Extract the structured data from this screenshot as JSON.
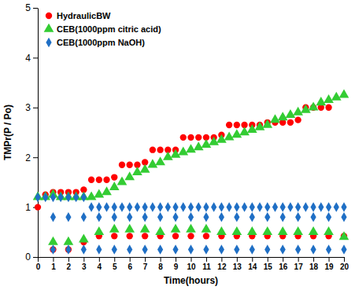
{
  "chart_data": {
    "type": "scatter",
    "x_label": "Time(hours)",
    "y_label": "TMPr(P / Po)",
    "xlim": [
      0,
      20
    ],
    "xticks": [
      0,
      1,
      2,
      3,
      4,
      5,
      6,
      7,
      8,
      9,
      10,
      11,
      12,
      13,
      14,
      15,
      16,
      17,
      18,
      19,
      20
    ],
    "ylim": [
      0,
      5
    ],
    "yticks": [
      0,
      1,
      2,
      3,
      4,
      5
    ],
    "legend": "top-left",
    "grid": false,
    "series": [
      {
        "name": "HydraulicBW",
        "color": "#ff0000",
        "marker": "circle",
        "x": [
          0,
          0.5,
          1,
          1.5,
          2,
          2.5,
          3,
          3.5,
          4,
          4.5,
          5,
          5.5,
          6,
          6.5,
          7,
          7.5,
          8,
          8.5,
          9,
          9.5,
          10,
          10.5,
          11,
          11.5,
          12,
          12.5,
          13,
          13.5,
          14,
          14.5,
          15,
          15.5,
          16,
          16.5,
          17,
          17.5,
          18,
          18.5,
          19,
          1,
          2,
          3,
          4,
          5,
          6,
          7,
          8,
          9,
          10,
          11,
          12,
          13,
          14,
          15,
          16,
          17,
          18,
          19,
          20
        ],
        "values": [
          1.0,
          1.25,
          1.3,
          1.3,
          1.3,
          1.3,
          1.35,
          1.55,
          1.55,
          1.55,
          1.6,
          1.85,
          1.85,
          1.85,
          1.9,
          2.15,
          2.15,
          2.15,
          2.15,
          2.4,
          2.4,
          2.4,
          2.4,
          2.4,
          2.45,
          2.65,
          2.65,
          2.65,
          2.65,
          2.65,
          2.7,
          2.7,
          2.7,
          2.7,
          2.75,
          3.0,
          3.0,
          3.0,
          3.0,
          0.15,
          0.15,
          0.3,
          0.42,
          0.42,
          0.42,
          0.42,
          0.42,
          0.42,
          0.42,
          0.42,
          0.42,
          0.42,
          0.42,
          0.42,
          0.42,
          0.42,
          0.42,
          0.42,
          0.42
        ]
      },
      {
        "name": "CEB(1000ppm citric acid)",
        "color": "#33cc33",
        "marker": "triangle",
        "x": [
          0,
          0.5,
          1,
          1.5,
          2,
          2.5,
          3,
          3.5,
          4,
          4.5,
          5,
          5.5,
          6,
          6.5,
          7,
          7.5,
          8,
          8.5,
          9,
          9.5,
          10,
          10.5,
          11,
          11.5,
          12,
          12.5,
          13,
          13.5,
          14,
          14.5,
          15,
          15.5,
          16,
          16.5,
          17,
          17.5,
          18,
          18.5,
          19,
          19.5,
          20,
          1,
          2,
          3,
          4,
          5,
          6,
          7,
          8,
          9,
          10,
          11,
          12,
          13,
          14,
          15,
          16,
          17,
          18,
          19,
          20
        ],
        "values": [
          1.2,
          1.2,
          1.25,
          1.2,
          1.2,
          1.2,
          1.2,
          1.2,
          1.25,
          1.3,
          1.4,
          1.5,
          1.6,
          1.7,
          1.75,
          1.85,
          1.9,
          2.0,
          2.05,
          2.1,
          2.15,
          2.2,
          2.25,
          2.3,
          2.35,
          2.4,
          2.45,
          2.5,
          2.55,
          2.6,
          2.65,
          2.75,
          2.8,
          2.85,
          2.9,
          2.95,
          3.0,
          3.1,
          3.15,
          3.2,
          3.25,
          0.3,
          0.3,
          0.35,
          0.5,
          0.55,
          0.55,
          0.55,
          0.5,
          0.55,
          0.55,
          0.55,
          0.5,
          0.5,
          0.5,
          0.5,
          0.5,
          0.5,
          0.5,
          0.5,
          0.4
        ]
      },
      {
        "name": "CEB(1000ppm NaOH)",
        "color": "#1f6fc5",
        "marker": "diamond",
        "x": [
          0,
          0.5,
          1,
          1.5,
          2,
          2.5,
          3,
          3.5,
          4,
          4.5,
          5,
          5.5,
          6,
          6.5,
          7,
          7.5,
          8,
          8.5,
          9,
          9.5,
          10,
          10.5,
          11,
          11.5,
          12,
          12.5,
          13,
          13.5,
          14,
          14.5,
          15,
          15.5,
          16,
          16.5,
          17,
          17.5,
          18,
          18.5,
          19,
          19.5,
          20,
          1,
          2,
          3,
          4,
          5,
          6,
          7,
          8,
          9,
          10,
          11,
          12,
          13,
          14,
          15,
          16,
          17,
          18,
          19,
          20,
          1,
          2,
          3,
          4,
          5,
          6,
          7,
          8,
          9,
          10,
          11,
          12,
          13,
          14,
          15,
          16,
          17,
          18,
          19,
          20
        ],
        "values": [
          1.2,
          1.2,
          1.2,
          1.2,
          1.2,
          1.2,
          1.2,
          1.0,
          1.0,
          1.0,
          1.0,
          1.0,
          1.0,
          1.0,
          1.0,
          1.0,
          1.0,
          1.0,
          1.0,
          1.0,
          1.0,
          1.0,
          1.0,
          1.0,
          1.0,
          1.0,
          1.0,
          1.0,
          1.0,
          1.0,
          1.0,
          1.0,
          1.0,
          1.0,
          1.0,
          1.0,
          1.0,
          1.0,
          1.0,
          1.0,
          1.0,
          0.8,
          0.8,
          0.8,
          0.8,
          0.8,
          0.8,
          0.8,
          0.8,
          0.8,
          0.8,
          0.8,
          0.8,
          0.8,
          0.8,
          0.8,
          0.8,
          0.8,
          0.8,
          0.8,
          0.8,
          0.15,
          0.15,
          0.15,
          0.15,
          0.15,
          0.15,
          0.15,
          0.15,
          0.15,
          0.15,
          0.15,
          0.15,
          0.15,
          0.15,
          0.15,
          0.15,
          0.15,
          0.15,
          0.15,
          0.15
        ]
      }
    ]
  }
}
